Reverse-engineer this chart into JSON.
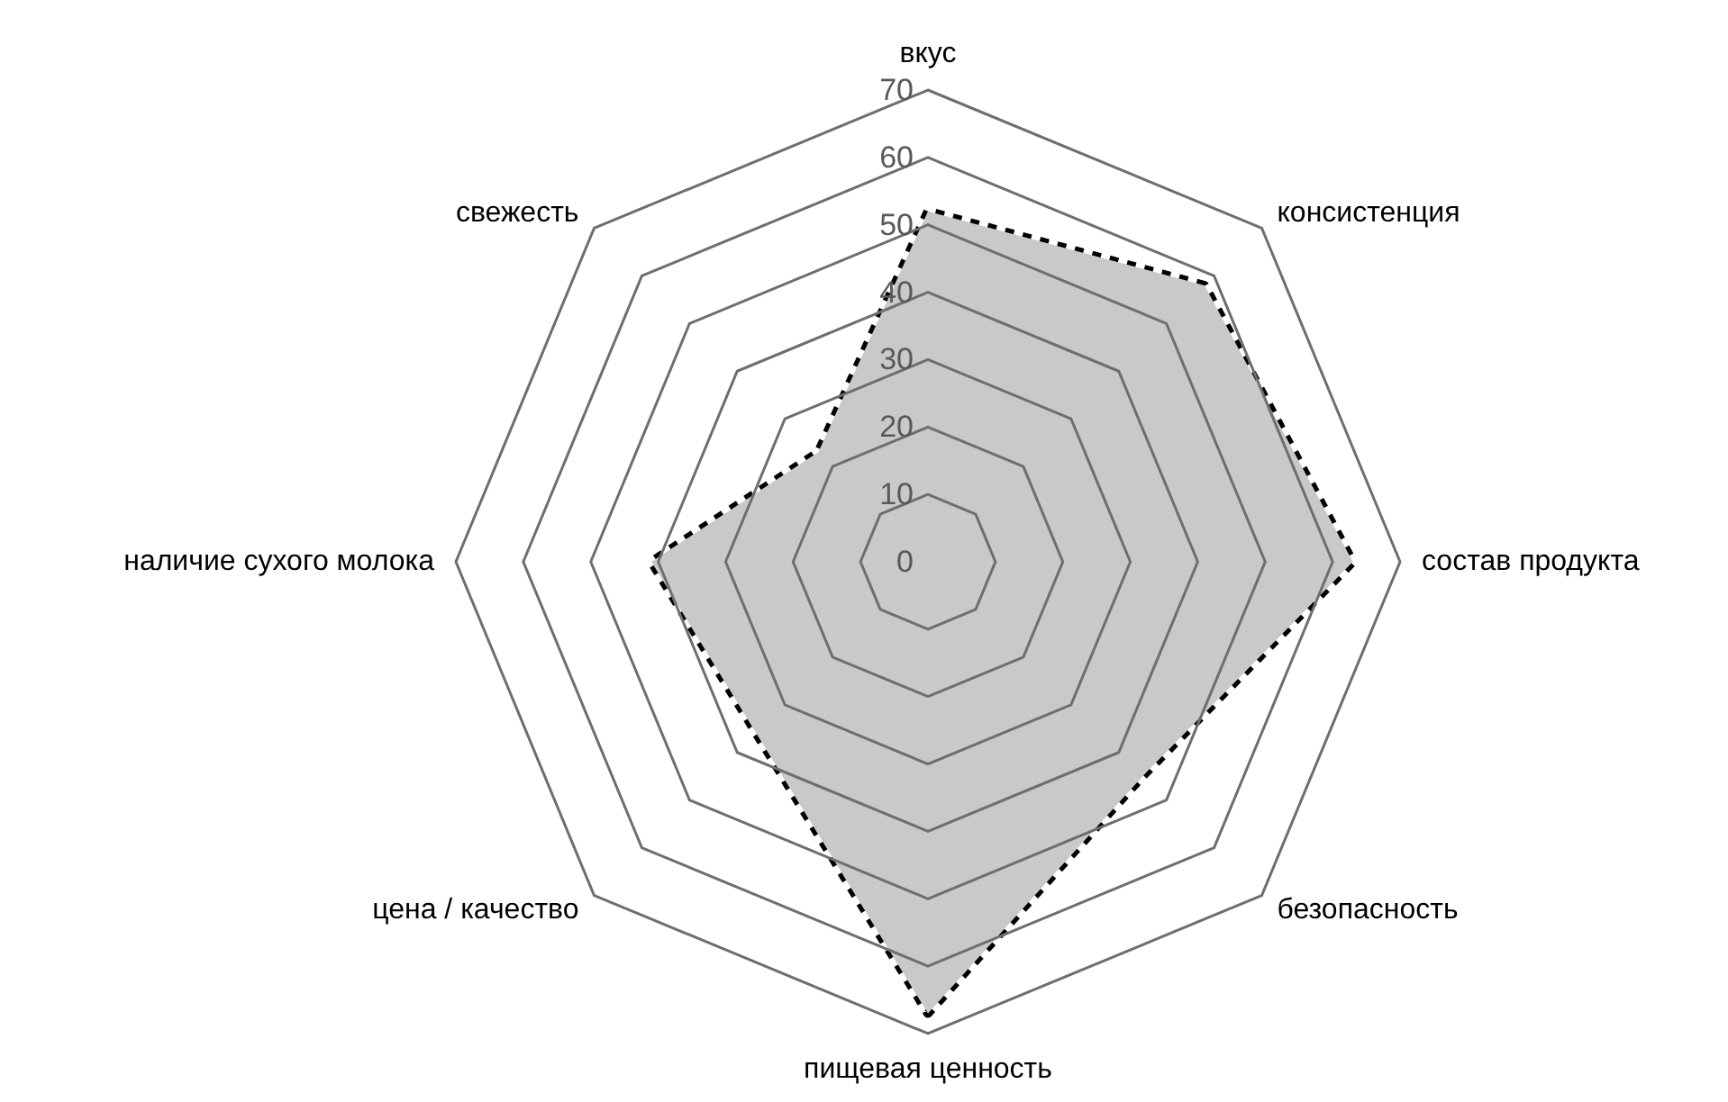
{
  "chart_data": {
    "type": "radar",
    "categories": [
      "вкус",
      "консистенция",
      "состав продукта",
      "безопасность",
      "пищевая ценность",
      "цена / качество",
      "наличие сухого молока",
      "свежесть"
    ],
    "series": [
      {
        "color": "#c8c9cb",
        "values": [
          52,
          58,
          63,
          45,
          67,
          36,
          41,
          23
        ]
      }
    ],
    "ylim": [
      0,
      70
    ],
    "yticks": [
      0,
      10,
      20,
      30,
      40,
      50,
      60,
      70
    ],
    "grid": true,
    "marker": "none",
    "line_style": "dotted"
  }
}
